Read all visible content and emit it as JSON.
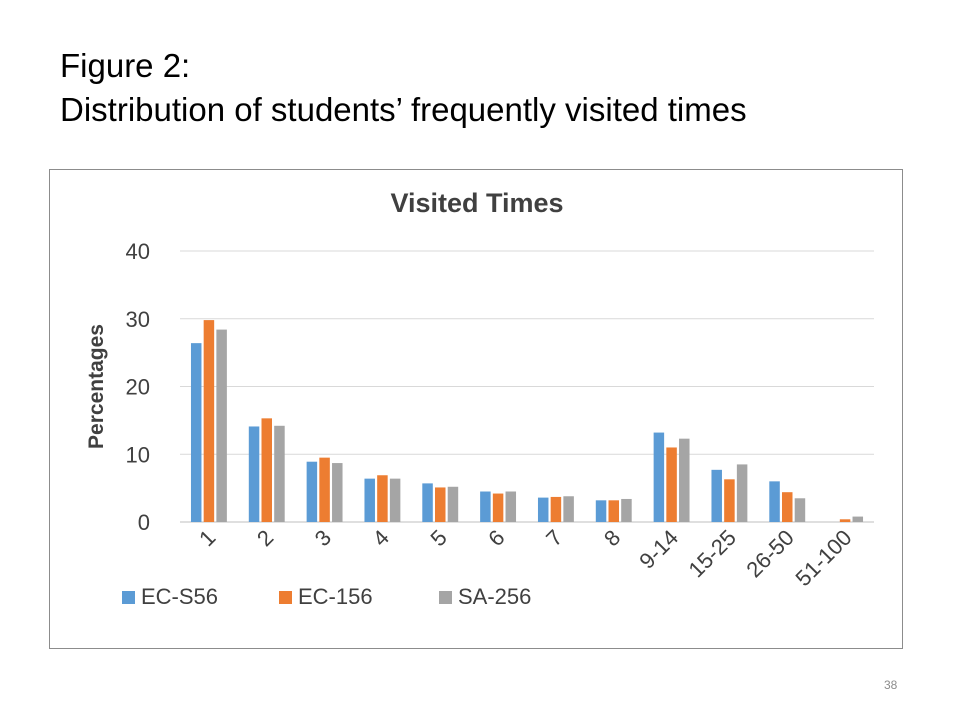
{
  "slide": {
    "title_line1": "Figure 2:",
    "title_line2": "Distribution of students’ frequently visited times",
    "page_number": "38"
  },
  "chart_data": {
    "type": "bar",
    "title": "Visited Times",
    "xlabel": "",
    "ylabel": "Percentages",
    "ylim": [
      0,
      40
    ],
    "yticks": [
      0,
      10,
      20,
      30,
      40
    ],
    "grid": true,
    "legend": "bottom-left",
    "categories": [
      "1",
      "2",
      "3",
      "4",
      "5",
      "6",
      "7",
      "8",
      "9-14",
      "15-25",
      "26-50",
      "51-100"
    ],
    "series": [
      {
        "name": "EC-S56",
        "color": "#5b9bd5",
        "values": [
          26.4,
          14.1,
          8.9,
          6.4,
          5.7,
          4.5,
          3.6,
          3.2,
          13.2,
          7.7,
          6.0,
          0.0
        ]
      },
      {
        "name": "EC-156",
        "color": "#ed7d31",
        "values": [
          29.8,
          15.3,
          9.5,
          6.9,
          5.1,
          4.2,
          3.7,
          3.2,
          11.0,
          6.3,
          4.4,
          0.4
        ]
      },
      {
        "name": "SA-256",
        "color": "#a5a5a5",
        "values": [
          28.4,
          14.2,
          8.7,
          6.4,
          5.2,
          4.5,
          3.8,
          3.4,
          12.3,
          8.5,
          3.5,
          0.8
        ]
      }
    ]
  }
}
